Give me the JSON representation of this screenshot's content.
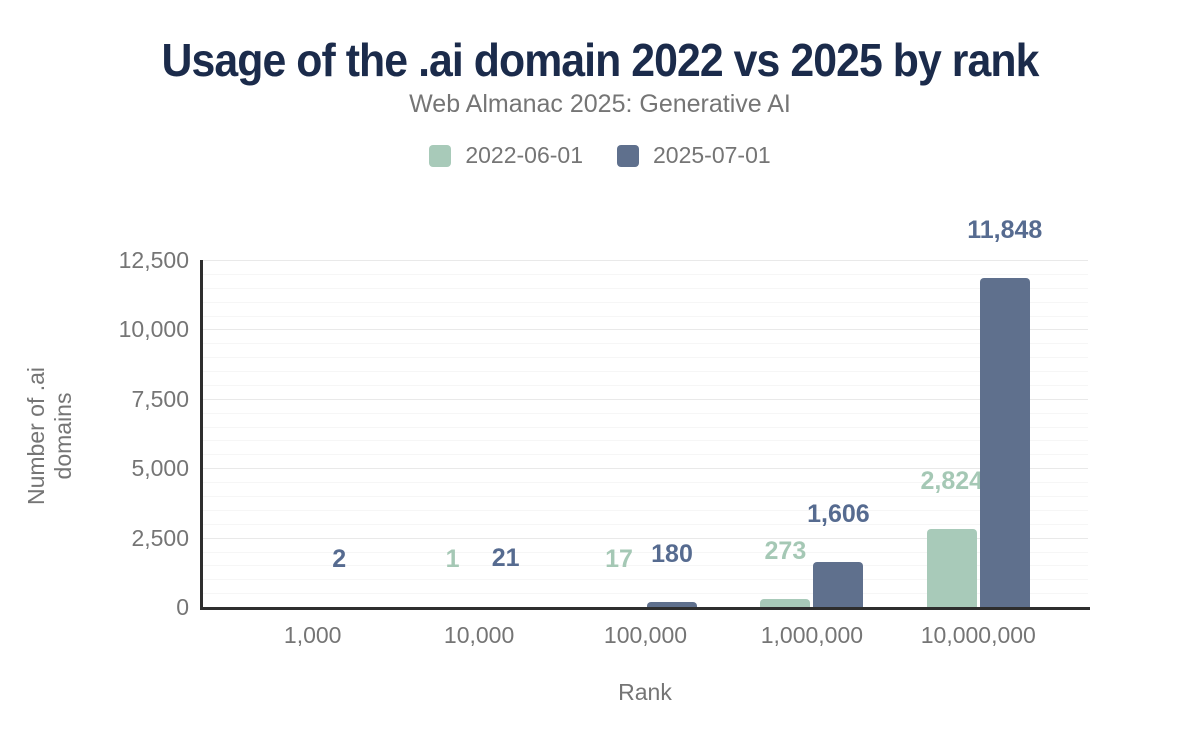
{
  "title": "Usage of the .ai domain 2022 vs 2025 by rank",
  "subtitle": "Web Almanac 2025: Generative AI",
  "legend": [
    {
      "label": "2022-06-01",
      "color": "#a8cab9"
    },
    {
      "label": "2025-07-01",
      "color": "#5f708d"
    }
  ],
  "chart_data": {
    "type": "bar",
    "title": "Usage of the .ai domain 2022 vs 2025 by rank",
    "subtitle": "Web Almanac 2025: Generative AI",
    "xlabel": "Rank",
    "ylabel": "Number of .ai domains",
    "categories": [
      "1,000",
      "10,000",
      "100,000",
      "1,000,000",
      "10,000,000"
    ],
    "series": [
      {
        "name": "2022-06-01",
        "color": "#a8cab9",
        "label_color": "#a5c8b5",
        "values": [
          0,
          1,
          17,
          273,
          2824
        ],
        "labels": [
          "",
          "1",
          "17",
          "273",
          "2,824"
        ]
      },
      {
        "name": "2025-07-01",
        "color": "#5f708d",
        "label_color": "#566b90",
        "values": [
          2,
          21,
          180,
          1606,
          11848
        ],
        "labels": [
          "2",
          "21",
          "180",
          "1,606",
          "11,848"
        ]
      }
    ],
    "ylim": [
      0,
      12500
    ],
    "yticks": [
      {
        "v": 0,
        "label": "0"
      },
      {
        "v": 2500,
        "label": "2,500"
      },
      {
        "v": 5000,
        "label": "5,000"
      },
      {
        "v": 7500,
        "label": "7,500"
      },
      {
        "v": 10000,
        "label": "10,000"
      },
      {
        "v": 12500,
        "label": "12,500"
      }
    ],
    "grid": {
      "minor_step": 500,
      "major_step": 2500
    },
    "legend_position": "top"
  },
  "colors": {
    "title": "#1b2b4b",
    "muted_text": "#757575",
    "axis": "#2e2e2e",
    "grid_minor": "#f6f6f6",
    "grid_major": "#e9e9e9"
  }
}
